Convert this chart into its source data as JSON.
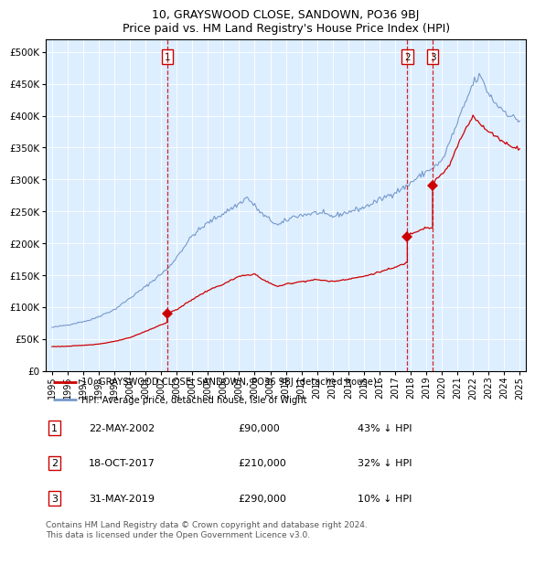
{
  "title": "10, GRAYSWOOD CLOSE, SANDOWN, PO36 9BJ",
  "subtitle": "Price paid vs. HM Land Registry's House Price Index (HPI)",
  "legend_property": "10, GRAYSWOOD CLOSE, SANDOWN, PO36 9BJ (detached house)",
  "legend_hpi": "HPI: Average price, detached house, Isle of Wight",
  "property_color": "#cc0000",
  "hpi_color": "#7799cc",
  "plot_bg_color": "#ddeeff",
  "ylim": [
    0,
    520000
  ],
  "yticks": [
    0,
    50000,
    100000,
    150000,
    200000,
    250000,
    300000,
    350000,
    400000,
    450000,
    500000
  ],
  "sale_dates_decimal": [
    2002.388,
    2017.796,
    2019.412
  ],
  "sale_prices": [
    90000,
    210000,
    290000
  ],
  "sale_labels": [
    "1",
    "2",
    "3"
  ],
  "table_data": [
    {
      "num": "1",
      "date": "22-MAY-2002",
      "price": "£90,000",
      "hpi": "43% ↓ HPI"
    },
    {
      "num": "2",
      "date": "18-OCT-2017",
      "price": "£210,000",
      "hpi": "32% ↓ HPI"
    },
    {
      "num": "3",
      "date": "31-MAY-2019",
      "price": "£290,000",
      "hpi": "10% ↓ HPI"
    }
  ],
  "footer": "Contains HM Land Registry data © Crown copyright and database right 2024.\nThis data is licensed under the Open Government Licence v3.0.",
  "xlim": [
    1994.6,
    2025.4
  ],
  "xticks": [
    1995,
    1996,
    1997,
    1998,
    1999,
    2000,
    2001,
    2002,
    2003,
    2004,
    2005,
    2006,
    2007,
    2008,
    2009,
    2010,
    2011,
    2012,
    2013,
    2014,
    2015,
    2016,
    2017,
    2018,
    2019,
    2020,
    2021,
    2022,
    2023,
    2024,
    2025
  ]
}
